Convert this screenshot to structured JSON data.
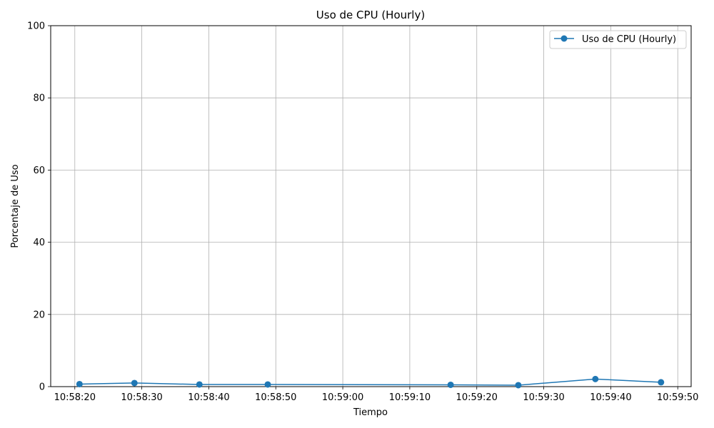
{
  "chart_data": {
    "type": "line",
    "title": "Uso de CPU (Hourly)",
    "xlabel": "Tiempo",
    "ylabel": "Porcentaje de Uso",
    "ylim": [
      0,
      100
    ],
    "xlim": [
      "10:58:16.4",
      "10:59:52.0"
    ],
    "y_ticks": [
      0,
      20,
      40,
      60,
      80,
      100
    ],
    "x_ticks": [
      "10:58:20",
      "10:58:30",
      "10:58:40",
      "10:58:50",
      "10:59:00",
      "10:59:10",
      "10:59:20",
      "10:59:30",
      "10:59:40",
      "10:59:50"
    ],
    "grid": true,
    "legend_position": "top-right",
    "series": [
      {
        "name": "Uso de CPU (Hourly)",
        "color": "#1f77b4",
        "marker": "circle",
        "x": [
          "10:58:20.7",
          "10:58:28.9",
          "10:58:38.6",
          "10:58:48.8",
          "10:59:16.1",
          "10:59:26.2",
          "10:59:37.7",
          "10:59:47.5"
        ],
        "y": [
          0.7,
          1.0,
          0.6,
          0.6,
          0.5,
          0.4,
          2.1,
          1.2
        ]
      }
    ]
  }
}
